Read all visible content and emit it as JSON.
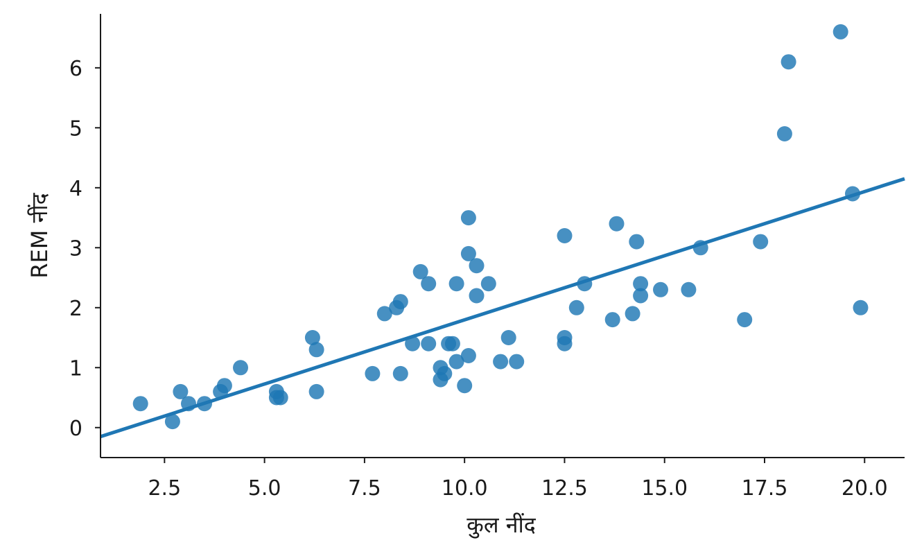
{
  "chart_data": {
    "type": "scatter",
    "title": "",
    "xlabel": "कुल नींद",
    "ylabel": "REM नींद",
    "xlim": [
      0.9,
      21.0
    ],
    "ylim": [
      -0.5,
      6.9
    ],
    "xticks": [
      "2.5",
      "5.0",
      "7.5",
      "10.0",
      "12.5",
      "15.0",
      "17.5",
      "20.0"
    ],
    "yticks": [
      "0",
      "1",
      "2",
      "3",
      "4",
      "5",
      "6"
    ],
    "grid": false,
    "color": "#1f77b4",
    "points": [
      {
        "x": 1.9,
        "y": 0.4
      },
      {
        "x": 2.7,
        "y": 0.1
      },
      {
        "x": 2.9,
        "y": 0.6
      },
      {
        "x": 3.1,
        "y": 0.4
      },
      {
        "x": 3.5,
        "y": 0.4
      },
      {
        "x": 3.9,
        "y": 0.6
      },
      {
        "x": 4.0,
        "y": 0.7
      },
      {
        "x": 4.4,
        "y": 1.0
      },
      {
        "x": 5.3,
        "y": 0.6
      },
      {
        "x": 5.4,
        "y": 0.5
      },
      {
        "x": 5.3,
        "y": 0.5
      },
      {
        "x": 6.2,
        "y": 1.5
      },
      {
        "x": 6.3,
        "y": 1.3
      },
      {
        "x": 6.3,
        "y": 0.6
      },
      {
        "x": 7.7,
        "y": 0.9
      },
      {
        "x": 8.0,
        "y": 1.9
      },
      {
        "x": 8.3,
        "y": 2.0
      },
      {
        "x": 8.4,
        "y": 2.1
      },
      {
        "x": 8.4,
        "y": 0.9
      },
      {
        "x": 8.7,
        "y": 1.4
      },
      {
        "x": 8.9,
        "y": 2.6
      },
      {
        "x": 9.1,
        "y": 2.4
      },
      {
        "x": 9.1,
        "y": 1.4
      },
      {
        "x": 9.4,
        "y": 1.0
      },
      {
        "x": 9.4,
        "y": 0.8
      },
      {
        "x": 9.5,
        "y": 0.9
      },
      {
        "x": 9.6,
        "y": 1.4
      },
      {
        "x": 9.7,
        "y": 1.4
      },
      {
        "x": 9.8,
        "y": 2.4
      },
      {
        "x": 9.8,
        "y": 1.1
      },
      {
        "x": 10.0,
        "y": 0.7
      },
      {
        "x": 10.1,
        "y": 1.2
      },
      {
        "x": 10.1,
        "y": 3.5
      },
      {
        "x": 10.1,
        "y": 2.9
      },
      {
        "x": 10.3,
        "y": 2.7
      },
      {
        "x": 10.3,
        "y": 2.2
      },
      {
        "x": 10.6,
        "y": 2.4
      },
      {
        "x": 10.9,
        "y": 1.1
      },
      {
        "x": 11.1,
        "y": 1.5
      },
      {
        "x": 11.3,
        "y": 1.1
      },
      {
        "x": 12.5,
        "y": 3.2
      },
      {
        "x": 12.5,
        "y": 1.5
      },
      {
        "x": 12.5,
        "y": 1.4
      },
      {
        "x": 12.8,
        "y": 2.0
      },
      {
        "x": 13.0,
        "y": 2.4
      },
      {
        "x": 13.7,
        "y": 1.8
      },
      {
        "x": 13.8,
        "y": 3.4
      },
      {
        "x": 14.2,
        "y": 1.9
      },
      {
        "x": 14.3,
        "y": 3.1
      },
      {
        "x": 14.4,
        "y": 2.4
      },
      {
        "x": 14.4,
        "y": 2.2
      },
      {
        "x": 14.9,
        "y": 2.3
      },
      {
        "x": 15.6,
        "y": 2.3
      },
      {
        "x": 15.9,
        "y": 3.0
      },
      {
        "x": 17.0,
        "y": 1.8
      },
      {
        "x": 17.4,
        "y": 3.1
      },
      {
        "x": 18.0,
        "y": 4.9
      },
      {
        "x": 18.1,
        "y": 6.1
      },
      {
        "x": 19.4,
        "y": 6.6
      },
      {
        "x": 19.7,
        "y": 3.9
      },
      {
        "x": 19.9,
        "y": 2.0
      }
    ],
    "regression_line": {
      "x": [
        0.9,
        21.0
      ],
      "y": [
        -0.15,
        4.15
      ]
    }
  }
}
